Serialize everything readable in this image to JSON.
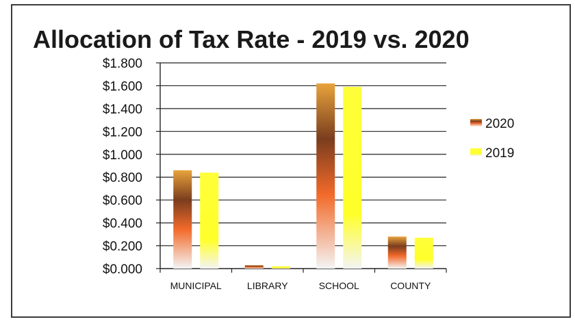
{
  "chart_data": {
    "type": "bar",
    "title": "Allocation of Tax Rate - 2019 vs. 2020",
    "categories": [
      "MUNICIPAL",
      "LIBRARY",
      "SCHOOL",
      "COUNTY"
    ],
    "series": [
      {
        "name": "2020",
        "values": [
          0.86,
          0.03,
          1.62,
          0.28
        ],
        "color": "#a0522d"
      },
      {
        "name": "2019",
        "values": [
          0.84,
          0.02,
          1.59,
          0.27
        ],
        "color": "#ffff33"
      }
    ],
    "yticks": [
      "$0.000",
      "$0.200",
      "$0.400",
      "$0.600",
      "$0.800",
      "$1.000",
      "$1.200",
      "$1.400",
      "$1.600",
      "$1.800"
    ],
    "ylim": [
      0,
      1.8
    ],
    "xlabel": "",
    "ylabel": "",
    "grid": true,
    "legend_position": "right"
  }
}
